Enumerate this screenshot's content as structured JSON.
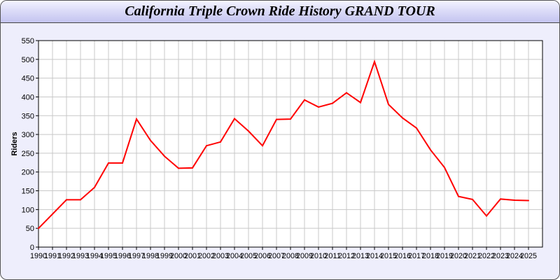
{
  "chart_data": {
    "type": "line",
    "title": "California Triple Crown Ride History GRAND TOUR",
    "xlabel": "",
    "ylabel": "Riders",
    "ylim": [
      0,
      550
    ],
    "yticks": [
      0,
      50,
      100,
      150,
      200,
      250,
      300,
      350,
      400,
      450,
      500,
      550
    ],
    "grid": true,
    "line_color": "#ff0000",
    "categories": [
      "1990",
      "1991",
      "1992",
      "1993",
      "1994",
      "1995",
      "1996",
      "1997",
      "1998",
      "1999",
      "2000",
      "2001",
      "2002",
      "2003",
      "2004",
      "2005",
      "2006",
      "2007",
      "2008",
      "2009",
      "2010",
      "2011",
      "2012",
      "2013",
      "2014",
      "2015",
      "2016",
      "2017",
      "2018",
      "2019",
      "2020",
      "2021",
      "2022",
      "2023",
      "2024",
      "2025"
    ],
    "values": [
      50,
      88,
      126,
      126,
      159,
      224,
      224,
      341,
      284,
      242,
      210,
      211,
      270,
      280,
      342,
      309,
      270,
      340,
      341,
      392,
      373,
      383,
      411,
      385,
      494,
      380,
      344,
      317,
      259,
      212,
      135,
      127,
      83,
      128,
      125,
      124
    ]
  }
}
